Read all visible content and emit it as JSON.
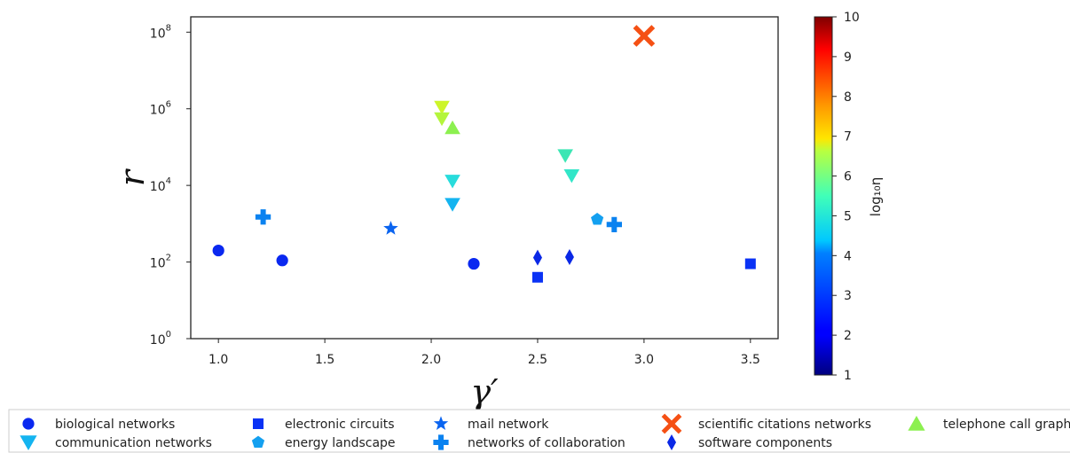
{
  "chart_data": {
    "type": "scatter",
    "title": "",
    "xlabel": "γ′",
    "ylabel": "r",
    "xlim": [
      0.87,
      3.63
    ],
    "ylim_log10": [
      0,
      8.4
    ],
    "y_scale": "log",
    "grid": false,
    "x_ticks": [
      {
        "v": 1.0,
        "label": "1.0"
      },
      {
        "v": 1.5,
        "label": "1.5"
      },
      {
        "v": 2.0,
        "label": "2.0"
      },
      {
        "v": 2.5,
        "label": "2.5"
      },
      {
        "v": 3.0,
        "label": "3.0"
      },
      {
        "v": 3.5,
        "label": "3.5"
      }
    ],
    "y_ticks": [
      {
        "v": 0,
        "exp": "0"
      },
      {
        "v": 2,
        "exp": "2"
      },
      {
        "v": 4,
        "exp": "4"
      },
      {
        "v": 6,
        "exp": "6"
      },
      {
        "v": 8,
        "exp": "8"
      }
    ],
    "colorbar": {
      "label": "log₁₀η",
      "range": [
        1,
        10
      ],
      "ticks": [
        "1",
        "2",
        "3",
        "4",
        "5",
        "6",
        "7",
        "8",
        "9",
        "10"
      ],
      "colormap": "jet"
    },
    "legend_position": "bottom",
    "series": [
      {
        "name": "biological networks",
        "marker": "circle",
        "color": "#0a28f0",
        "points": [
          {
            "x": 1.0,
            "y": 200
          },
          {
            "x": 1.3,
            "y": 110
          },
          {
            "x": 2.2,
            "y": 90
          }
        ]
      },
      {
        "name": "communication networks",
        "marker": "triangle-down",
        "color": "#14b4f0",
        "points": [
          {
            "x": 2.05,
            "y": 1100000,
            "color": "#cdf52a"
          },
          {
            "x": 2.05,
            "y": 550000,
            "color": "#b4f53c"
          },
          {
            "x": 2.1,
            "y": 13000,
            "color": "#28dcdc"
          },
          {
            "x": 2.1,
            "y": 3200,
            "color": "#14b4f0"
          },
          {
            "x": 2.63,
            "y": 60000,
            "color": "#3ce6b4"
          },
          {
            "x": 2.66,
            "y": 18000,
            "color": "#32e6c8"
          }
        ]
      },
      {
        "name": "electronic circuits",
        "marker": "square",
        "color": "#0a32f5",
        "points": [
          {
            "x": 2.5,
            "y": 40
          },
          {
            "x": 3.5,
            "y": 90
          }
        ]
      },
      {
        "name": "energy landscape",
        "marker": "pentagon",
        "color": "#14a0f0",
        "points": [
          {
            "x": 2.78,
            "y": 1300
          }
        ]
      },
      {
        "name": "mail network",
        "marker": "star",
        "color": "#0a64f0",
        "points": [
          {
            "x": 1.81,
            "y": 750
          }
        ]
      },
      {
        "name": "networks of collaboration",
        "marker": "plus",
        "color": "#0a82f0",
        "points": [
          {
            "x": 1.21,
            "y": 1500
          },
          {
            "x": 2.86,
            "y": 950
          }
        ]
      },
      {
        "name": "scientific citations networks",
        "marker": "x",
        "color": "#f55014",
        "points": [
          {
            "x": 3.0,
            "y": 80000000
          }
        ]
      },
      {
        "name": "software components",
        "marker": "diamond",
        "color": "#0a28e6",
        "points": [
          {
            "x": 2.5,
            "y": 130
          },
          {
            "x": 2.65,
            "y": 135
          }
        ]
      },
      {
        "name": "telephone call graph",
        "marker": "triangle-up",
        "color": "#8cf050",
        "points": [
          {
            "x": 2.1,
            "y": 320000
          }
        ]
      }
    ]
  }
}
